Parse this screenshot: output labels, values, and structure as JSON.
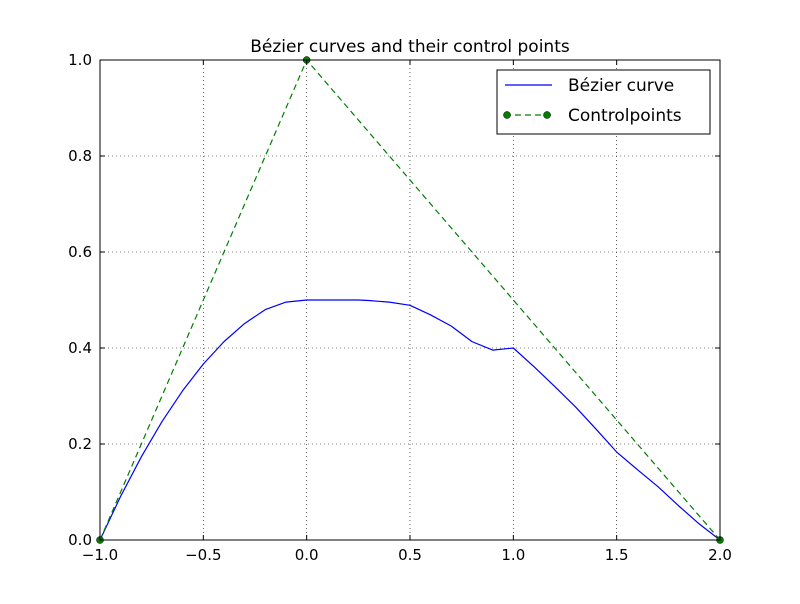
{
  "chart_data": {
    "type": "line",
    "title": "Bézier curves and their control points",
    "xlabel": "",
    "ylabel": "",
    "xlim": [
      -1.0,
      2.0
    ],
    "ylim": [
      0.0,
      1.0
    ],
    "x_ticks": [
      -1.0,
      -0.5,
      0.0,
      0.5,
      1.0,
      1.5,
      2.0
    ],
    "x_tick_labels": [
      "−1.0",
      "−0.5",
      "0.0",
      "0.5",
      "1.0",
      "1.5",
      "2.0"
    ],
    "y_ticks": [
      0.0,
      0.2,
      0.4,
      0.6,
      0.8,
      1.0
    ],
    "y_tick_labels": [
      "0.0",
      "0.2",
      "0.4",
      "0.6",
      "0.8",
      "1.0"
    ],
    "grid": true,
    "legend_position": "top-right",
    "series": [
      {
        "name": "Bézier curve",
        "color": "#0000ff",
        "style": "solid",
        "x": [
          -1.0,
          -0.9,
          -0.8,
          -0.7,
          -0.6,
          -0.5,
          -0.4,
          -0.3,
          -0.2,
          -0.1,
          0.0,
          0.1,
          0.2,
          0.25,
          0.3,
          0.4,
          0.5,
          0.6,
          0.7,
          0.8,
          0.9,
          1.0,
          1.1,
          1.2,
          1.3,
          1.4,
          1.5,
          1.6,
          1.7,
          1.8,
          1.9,
          2.0
        ],
        "y": [
          0.0,
          0.0911,
          0.1733,
          0.2467,
          0.3111,
          0.3667,
          0.4133,
          0.4511,
          0.48,
          0.4956,
          0.5,
          0.5,
          0.5,
          0.5,
          0.4989,
          0.4956,
          0.4889,
          0.4689,
          0.4456,
          0.4133,
          0.3956,
          0.4,
          0.3611,
          0.32,
          0.2778,
          0.2311,
          0.1833,
          0.1467,
          0.1111,
          0.0711,
          0.0333,
          0.0
        ]
      },
      {
        "name": "Controlpoints",
        "color": "#007f00",
        "style": "dashed",
        "marker": "circle",
        "x": [
          -1.0,
          0.0,
          2.0
        ],
        "y": [
          0.0,
          1.0,
          0.0
        ]
      }
    ]
  }
}
